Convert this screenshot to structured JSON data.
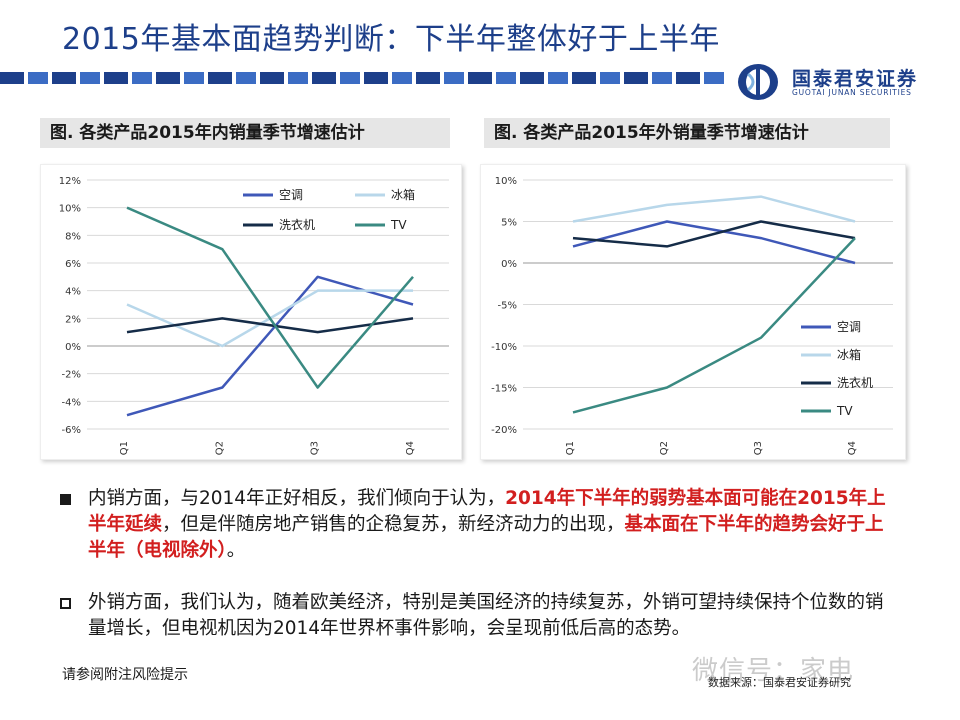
{
  "header": {
    "title": "2015年基本面趋势判断：下半年整体好于上半年",
    "brand_cn": "国泰君安证券",
    "brand_en": "GUOTAI  JUNAN  SECURITIES",
    "colors": {
      "brand": "#1d3f8a"
    }
  },
  "charts": {
    "left_title": "图. 各类产品2015年内销量季节增速估计",
    "right_title": "图. 各类产品2015年外销量季节增速估计"
  },
  "chart_data": [
    {
      "type": "line",
      "categories": [
        "Q1",
        "Q2",
        "Q3",
        "Q4"
      ],
      "ylim": [
        -6,
        12
      ],
      "yticks": [
        "12%",
        "10%",
        "8%",
        "6%",
        "4%",
        "2%",
        "0%",
        "-2%",
        "-4%",
        "-6%"
      ],
      "ytick_values": [
        12,
        10,
        8,
        6,
        4,
        2,
        0,
        -2,
        -4,
        -6
      ],
      "legend_position": "top-right",
      "series": [
        {
          "name": "空调",
          "color": "#3f58b8",
          "values": [
            -5,
            -3,
            5,
            3
          ]
        },
        {
          "name": "冰箱",
          "color": "#b8d7ea",
          "values": [
            3,
            0,
            4,
            4
          ]
        },
        {
          "name": "洗衣机",
          "color": "#152c48",
          "values": [
            1,
            2,
            1,
            2
          ]
        },
        {
          "name": "TV",
          "color": "#3a8a82",
          "values": [
            10,
            7,
            -3,
            5
          ]
        }
      ]
    },
    {
      "type": "line",
      "categories": [
        "Q1",
        "Q2",
        "Q3",
        "Q4"
      ],
      "ylim": [
        -20,
        10
      ],
      "yticks": [
        "10%",
        "5%",
        "0%",
        "-5%",
        "-10%",
        "-15%",
        "-20%"
      ],
      "ytick_values": [
        10,
        5,
        0,
        -5,
        -10,
        -15,
        -20
      ],
      "legend_position": "bottom-right",
      "series": [
        {
          "name": "空调",
          "color": "#3f58b8",
          "values": [
            2,
            5,
            3,
            0
          ]
        },
        {
          "name": "冰箱",
          "color": "#b8d7ea",
          "values": [
            5,
            7,
            8,
            5
          ]
        },
        {
          "name": "洗衣机",
          "color": "#152c48",
          "values": [
            3,
            2,
            5,
            3
          ]
        },
        {
          "name": "TV",
          "color": "#3a8a82",
          "values": [
            -18,
            -15,
            -9,
            3
          ]
        }
      ]
    }
  ],
  "body": {
    "p1_a": "内销方面，与2014年正好相反，我们倾向于认为，",
    "p1_b": "2014年下半年的弱势基本面可能在2015年上半年延续",
    "p1_c": "，但是伴随房地产销售的企稳复苏，新经济动力的出现，",
    "p1_d": "基本面在下半年的趋势会好于上半年（电视除外）",
    "p1_e": "。",
    "p2": "外销方面，我们认为，随着欧美经济，特别是美国经济的持续复苏，外销可望持续保持个位数的销量增长，但电视机因为2014年世界杯事件影响，会呈现前低后高的态势。"
  },
  "footer": {
    "risk": "请参阅附注风险提示",
    "source": "数据来源：国泰君安证券研究",
    "watermark": "微信号：家电"
  }
}
